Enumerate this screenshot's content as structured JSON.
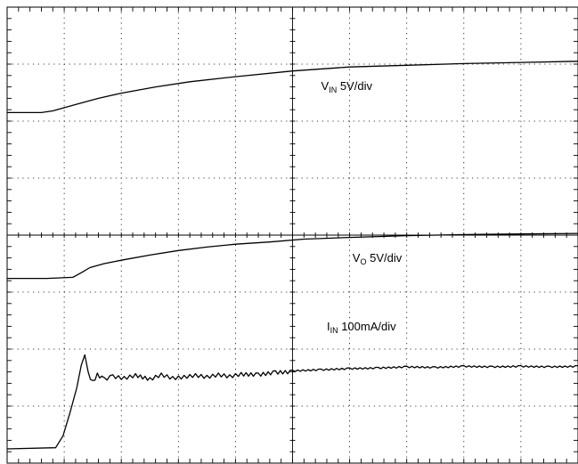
{
  "chart_data": {
    "type": "line",
    "grid": true,
    "x_divisions": 10,
    "y_divisions": 8,
    "cursor_x_div": 5,
    "series": [
      {
        "name": "V_IN",
        "label_main": "V",
        "label_sub": "IN",
        "label_rest": " 5V/div",
        "label_x_div": 5.5,
        "label_y_div": 1.45,
        "x_div": [
          0,
          0.6,
          0.8,
          1.2,
          1.6,
          2.0,
          2.6,
          3.2,
          4.0,
          5.0,
          6.0,
          7.0,
          8.0,
          9.0,
          10.0
        ],
        "y_div": [
          1.85,
          1.85,
          1.82,
          1.71,
          1.6,
          1.51,
          1.4,
          1.31,
          1.22,
          1.12,
          1.05,
          1.02,
          0.99,
          0.97,
          0.95
        ]
      },
      {
        "name": "V_O",
        "label_main": "V",
        "label_sub": "O",
        "label_rest": " 5V/div",
        "label_x_div": 6.05,
        "label_y_div": 4.47,
        "x_div": [
          0,
          0.7,
          1.15,
          1.3,
          1.45,
          1.7,
          2.0,
          2.5,
          3.0,
          3.5,
          4.0,
          4.6,
          5.2,
          6.0,
          7.0,
          8.0,
          9.0,
          10.0
        ],
        "y_div": [
          4.76,
          4.76,
          4.74,
          4.66,
          4.57,
          4.5,
          4.44,
          4.35,
          4.27,
          4.21,
          4.16,
          4.12,
          4.07,
          4.04,
          4.01,
          3.99,
          3.98,
          3.97
        ]
      },
      {
        "name": "I_IN",
        "label_main": "I",
        "label_sub": "IN",
        "label_rest": " 100mA/div",
        "label_x_div": 5.6,
        "label_y_div": 5.67,
        "x_div": [
          0,
          0.85,
          0.98,
          1.1,
          1.22,
          1.3,
          1.36,
          1.42,
          1.5,
          1.58,
          1.7,
          1.85,
          2.05,
          2.25,
          2.5,
          2.7,
          2.9,
          3.1,
          3.3,
          3.5,
          3.7,
          3.9,
          4.1,
          4.4,
          4.7,
          5.0,
          5.5,
          6.0,
          6.5,
          7.0,
          7.5,
          8.0,
          8.5,
          9.0,
          9.5,
          10.0
        ],
        "y_div": [
          7.75,
          7.73,
          7.52,
          7.12,
          6.68,
          6.28,
          6.1,
          6.4,
          6.55,
          6.42,
          6.5,
          6.45,
          6.48,
          6.43,
          6.5,
          6.42,
          6.48,
          6.46,
          6.43,
          6.46,
          6.42,
          6.45,
          6.41,
          6.42,
          6.38,
          6.37,
          6.35,
          6.33,
          6.32,
          6.3,
          6.31,
          6.29,
          6.3,
          6.29,
          6.3,
          6.29
        ]
      }
    ]
  }
}
